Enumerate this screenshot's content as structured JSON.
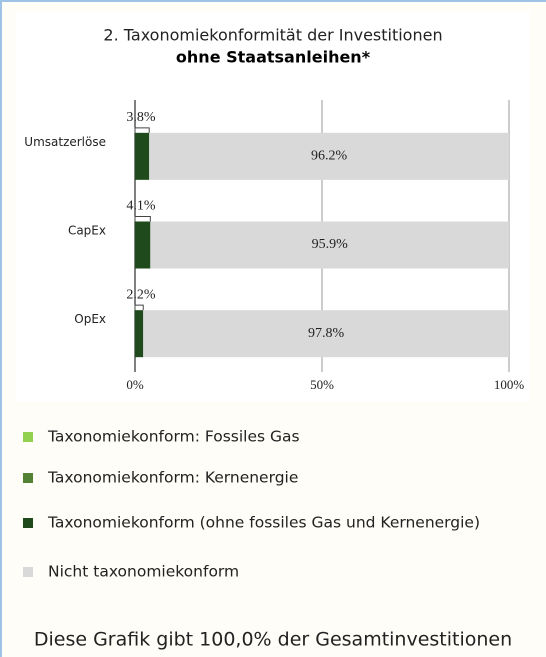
{
  "chart_data": {
    "type": "stacked-barh",
    "title": "2. Taxonomiekonformität der Investitionen",
    "subtitle": "ohne Staatsanleihen*",
    "categories": [
      "Umsatzerlöse",
      "CapEx",
      "OpEx"
    ],
    "series": [
      {
        "name": "Taxonomiekonform: Fossiles Gas",
        "color": "#92d050",
        "values": [
          0,
          0,
          0
        ]
      },
      {
        "name": "Taxonomiekonform: Kernenergie",
        "color": "#548235",
        "values": [
          0,
          0,
          0
        ]
      },
      {
        "name": "Taxonomiekonform (ohne fossiles Gas und Kernenergie)",
        "color": "#1f4a1c",
        "values": [
          3.8,
          4.1,
          2.2
        ],
        "value_labels": [
          "3.8%",
          "4.1%",
          "2.2%"
        ]
      },
      {
        "name": "Nicht taxonomiekonform",
        "color": "#d9d9d9",
        "values": [
          96.2,
          95.9,
          97.8
        ],
        "value_labels": [
          "96.2%",
          "95.9%",
          "97.8%"
        ]
      }
    ],
    "xlim": [
      0,
      100
    ],
    "xticks": [
      {
        "value": 0,
        "label": "0%"
      },
      {
        "value": 50,
        "label": "50%"
      },
      {
        "value": 100,
        "label": "100%"
      }
    ],
    "grid": true,
    "footnote": "Diese Grafik gibt 100,0% der Gesamtinvestitionen"
  }
}
